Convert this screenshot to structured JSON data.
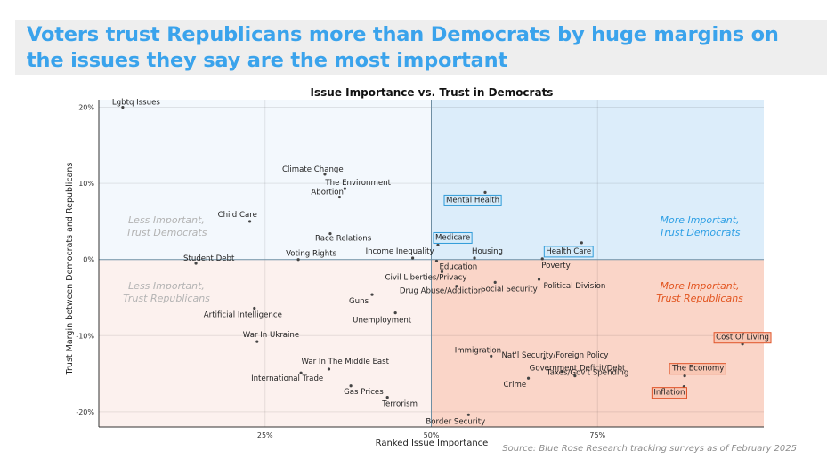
{
  "headline": "Voters trust Republicans more than Democrats by huge margins on the issues they say are the most important",
  "source_note": "Source: Blue Rose Research tracking surveys as of February 2025",
  "colors": {
    "headline": "#3aa3ec",
    "q_top_left": "#f3f8fd",
    "q_top_right": "#dcedfa",
    "q_bottom_left": "#fcf1ee",
    "q_bottom_right": "#fad5c8",
    "blue_text": "#2fa0e5",
    "red_text": "#e2541f",
    "gray_text": "#b3b3b3"
  },
  "chart_data": {
    "type": "scatter",
    "title": "Issue Importance vs. Trust in Democrats",
    "xlabel": "Ranked Issue Importance",
    "ylabel": "Trust Margin between Democrats and Republicans",
    "xlim": [
      0,
      100
    ],
    "ylim": [
      -22,
      21
    ],
    "x_ticks": [
      {
        "v": 25,
        "label": "25%"
      },
      {
        "v": 50,
        "label": "50%"
      },
      {
        "v": 75,
        "label": "75%"
      }
    ],
    "y_ticks": [
      {
        "v": 20,
        "label": "20%"
      },
      {
        "v": 10,
        "label": "10%"
      },
      {
        "v": 0,
        "label": "0%"
      },
      {
        "v": -10,
        "label": "-10%"
      },
      {
        "v": -20,
        "label": "-20%"
      }
    ],
    "grid": true,
    "quadrant_labels": [
      {
        "text": [
          "Less Important,",
          "Trust Democrats"
        ],
        "quadrant": "top-left"
      },
      {
        "text": [
          "More Important,",
          "Trust Democrats"
        ],
        "quadrant": "top-right"
      },
      {
        "text": [
          "Less Important,",
          "Trust Republicans"
        ],
        "quadrant": "bottom-left"
      },
      {
        "text": [
          "More Important,",
          "Trust Republicans"
        ],
        "quadrant": "bottom-right"
      }
    ],
    "points": [
      {
        "label": "Lgbtq Issues",
        "x": 3.6,
        "y": 20.0,
        "highlight": "none"
      },
      {
        "label": "Climate Change",
        "x": 34.0,
        "y": 11.2,
        "highlight": "none"
      },
      {
        "label": "The Environment",
        "x": 37.0,
        "y": 9.3,
        "highlight": "none"
      },
      {
        "label": "Abortion",
        "x": 36.2,
        "y": 8.2,
        "highlight": "none"
      },
      {
        "label": "Child Care",
        "x": 22.7,
        "y": 5.0,
        "highlight": "none"
      },
      {
        "label": "Race Relations",
        "x": 34.8,
        "y": 3.4,
        "highlight": "none"
      },
      {
        "label": "Voting Rights",
        "x": 30.0,
        "y": 0.0,
        "highlight": "none"
      },
      {
        "label": "Student Debt",
        "x": 14.6,
        "y": -0.5,
        "highlight": "none"
      },
      {
        "label": "Income Inequality",
        "x": 47.2,
        "y": 0.2,
        "highlight": "none"
      },
      {
        "label": "Mental Health",
        "x": 58.1,
        "y": 8.8,
        "highlight": "blue"
      },
      {
        "label": "Medicare",
        "x": 51.0,
        "y": 1.9,
        "highlight": "blue"
      },
      {
        "label": "Housing",
        "x": 56.5,
        "y": 0.2,
        "highlight": "none"
      },
      {
        "label": "Health Care",
        "x": 72.6,
        "y": 2.2,
        "highlight": "blue"
      },
      {
        "label": "Education",
        "x": 50.8,
        "y": -0.2,
        "highlight": "none"
      },
      {
        "label": "Poverty",
        "x": 66.7,
        "y": 0.1,
        "highlight": "none"
      },
      {
        "label": "Political Division",
        "x": 66.2,
        "y": -2.6,
        "highlight": "none"
      },
      {
        "label": "Civil Liberties/Privacy",
        "x": 51.6,
        "y": -1.6,
        "highlight": "none"
      },
      {
        "label": "Social Security",
        "x": 59.6,
        "y": -3.0,
        "highlight": "none"
      },
      {
        "label": "Drug Abuse/Addiction",
        "x": 53.8,
        "y": -3.5,
        "highlight": "none"
      },
      {
        "label": "Guns",
        "x": 41.1,
        "y": -4.6,
        "highlight": "none"
      },
      {
        "label": "Artificial Intelligence",
        "x": 23.4,
        "y": -6.4,
        "highlight": "none"
      },
      {
        "label": "Unemployment",
        "x": 44.6,
        "y": -7.0,
        "highlight": "none"
      },
      {
        "label": "War In Ukraine",
        "x": 23.8,
        "y": -10.8,
        "highlight": "none"
      },
      {
        "label": "Immigration",
        "x": 59.0,
        "y": -12.7,
        "highlight": "none"
      },
      {
        "label": "Nat'l Security/Foreign Policy",
        "x": 67.0,
        "y": -13.0,
        "highlight": "none"
      },
      {
        "label": "Government Deficit/Debt",
        "x": 69.7,
        "y": -14.7,
        "highlight": "none"
      },
      {
        "label": "Taxes/Gov't Spending",
        "x": 71.6,
        "y": -15.3,
        "highlight": "none"
      },
      {
        "label": "Crime",
        "x": 64.6,
        "y": -15.6,
        "highlight": "none"
      },
      {
        "label": "Cost Of Living",
        "x": 96.8,
        "y": -11.1,
        "highlight": "red"
      },
      {
        "label": "The Economy",
        "x": 88.1,
        "y": -15.3,
        "highlight": "red"
      },
      {
        "label": "Inflation",
        "x": 88.0,
        "y": -16.7,
        "highlight": "red"
      },
      {
        "label": "War In The Middle East",
        "x": 34.6,
        "y": -14.4,
        "highlight": "none"
      },
      {
        "label": "International Trade",
        "x": 30.4,
        "y": -14.9,
        "highlight": "none"
      },
      {
        "label": "Gas Prices",
        "x": 37.9,
        "y": -16.6,
        "highlight": "none"
      },
      {
        "label": "Terrorism",
        "x": 43.4,
        "y": -18.1,
        "highlight": "none"
      },
      {
        "label": "Border Security",
        "x": 55.6,
        "y": -20.4,
        "highlight": "none"
      }
    ]
  }
}
